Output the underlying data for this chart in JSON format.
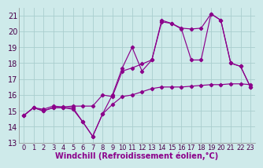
{
  "xlabel": "Windchill (Refroidissement éolien,°C)",
  "background_color": "#ceeaea",
  "line_color": "#8b008b",
  "grid_color": "#aacece",
  "xlim": [
    -0.5,
    23.5
  ],
  "ylim": [
    13,
    21.5
  ],
  "yticks": [
    13,
    14,
    15,
    16,
    17,
    18,
    19,
    20,
    21
  ],
  "xticks": [
    0,
    1,
    2,
    3,
    4,
    5,
    6,
    7,
    8,
    9,
    10,
    11,
    12,
    13,
    14,
    15,
    16,
    17,
    18,
    19,
    20,
    21,
    22,
    23
  ],
  "series1_x": [
    0,
    1,
    2,
    3,
    4,
    5,
    6,
    7,
    8,
    9,
    10,
    11,
    12,
    13,
    14,
    15,
    16,
    17,
    18,
    19,
    20,
    21,
    22,
    23
  ],
  "series1_y": [
    14.7,
    15.2,
    15.0,
    15.2,
    15.2,
    15.2,
    14.3,
    13.4,
    14.8,
    15.4,
    15.9,
    16.0,
    16.2,
    16.4,
    16.5,
    16.5,
    16.5,
    16.55,
    16.6,
    16.65,
    16.65,
    16.7,
    16.7,
    16.65
  ],
  "series2_x": [
    0,
    1,
    2,
    3,
    4,
    5,
    6,
    7,
    8,
    9,
    10,
    11,
    12,
    13,
    14,
    15,
    16,
    17,
    18,
    19,
    20,
    21,
    22,
    23
  ],
  "series2_y": [
    14.7,
    15.2,
    15.0,
    15.2,
    15.2,
    15.1,
    14.3,
    13.4,
    14.8,
    16.0,
    17.7,
    19.0,
    17.5,
    18.2,
    20.6,
    20.5,
    20.15,
    18.2,
    18.2,
    21.1,
    20.7,
    18.0,
    17.8,
    16.5
  ],
  "series3_x": [
    0,
    1,
    2,
    3,
    4,
    5,
    6,
    7,
    8,
    9,
    10,
    11,
    12,
    13,
    14,
    15,
    16,
    17,
    18,
    19,
    20,
    21,
    22,
    23
  ],
  "series3_y": [
    14.7,
    15.2,
    15.1,
    15.3,
    15.25,
    15.3,
    15.3,
    15.3,
    16.0,
    15.9,
    17.5,
    17.7,
    17.95,
    18.2,
    20.7,
    20.5,
    20.2,
    20.15,
    20.2,
    21.1,
    20.7,
    18.0,
    17.8,
    16.5
  ],
  "marker": "D",
  "markersize": 2.2,
  "linewidth": 0.85,
  "fontsize_xlabel": 7,
  "fontsize_yticks": 7,
  "fontsize_xticks": 6
}
